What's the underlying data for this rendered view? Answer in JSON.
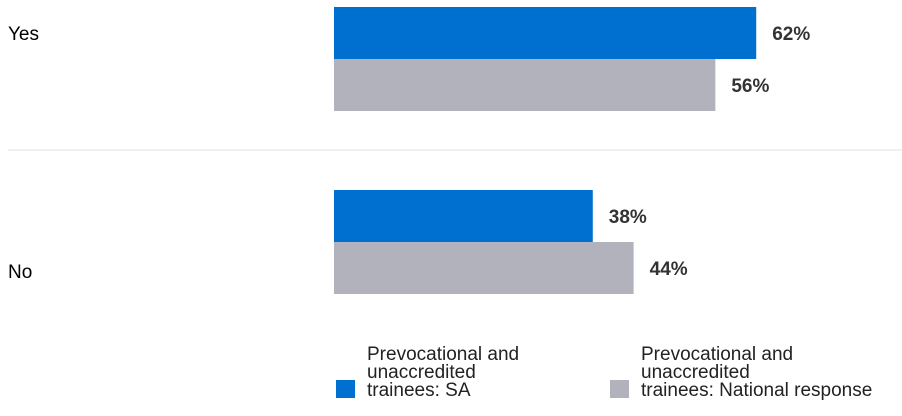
{
  "chart_data": {
    "type": "bar",
    "orientation": "horizontal",
    "categories": [
      "Yes",
      "No"
    ],
    "series": [
      {
        "name": "Prevocational and unaccredited trainees: SA",
        "values": [
          62,
          38
        ],
        "labels": [
          "62%",
          "38%"
        ],
        "color": "#0070d0"
      },
      {
        "name": "Prevocational and unaccredited trainees: National response",
        "values": [
          56,
          44
        ],
        "labels": [
          "56%",
          "44%"
        ],
        "color": "#b2b2bc"
      }
    ],
    "xlim": [
      0,
      100
    ],
    "unit": "%",
    "grid": false,
    "legend_position": "bottom"
  },
  "legend": [
    {
      "lines": [
        "Prevocational and",
        "unaccredited",
        "trainees: SA"
      ],
      "color": "#0070d0"
    },
    {
      "lines": [
        "Prevocational and",
        "unaccredited",
        "trainees: National response"
      ],
      "color": "#b2b2bc"
    }
  ]
}
